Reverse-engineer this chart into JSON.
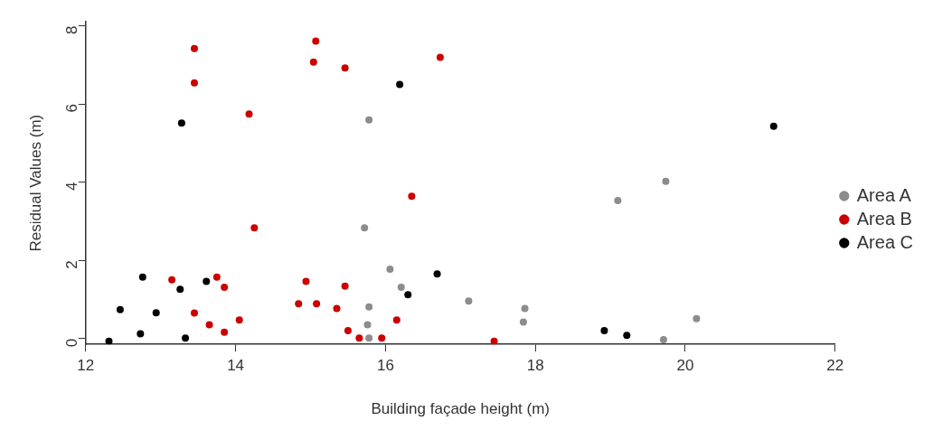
{
  "chart_data": {
    "type": "scatter",
    "xlabel": "Building façade height (m)",
    "ylabel": "Residual Values (m)",
    "xlim": [
      12,
      22
    ],
    "ylim": [
      -0.15,
      8.1
    ],
    "xticks": [
      12,
      14,
      16,
      18,
      20,
      22
    ],
    "yticks": [
      0,
      2,
      4,
      6,
      8
    ],
    "grid": false,
    "legend": "right",
    "marker": "circle",
    "series": [
      {
        "name": "Area A",
        "color": "#8c8c8c",
        "x": [
          15.78,
          15.72,
          16.06,
          16.21,
          15.78,
          15.76,
          15.78,
          17.11,
          17.86,
          17.84,
          19.1,
          19.74,
          19.71,
          20.15
        ],
        "values": [
          5.59,
          2.83,
          1.77,
          1.31,
          0.81,
          0.35,
          0.01,
          0.96,
          0.77,
          0.42,
          3.53,
          4.02,
          -0.03,
          0.51
        ]
      },
      {
        "name": "Area B",
        "color": "#cc0000",
        "x": [
          13.45,
          13.45,
          14.18,
          14.25,
          13.15,
          13.75,
          13.85,
          13.45,
          13.65,
          13.85,
          14.05,
          15.07,
          15.04,
          15.46,
          14.94,
          15.46,
          14.84,
          15.08,
          15.35,
          15.5,
          15.65,
          16.73,
          16.35,
          16.15,
          15.95,
          17.45
        ],
        "values": [
          7.42,
          6.54,
          5.74,
          2.83,
          1.5,
          1.57,
          1.31,
          0.65,
          0.35,
          0.16,
          0.47,
          7.61,
          7.07,
          6.92,
          1.46,
          1.34,
          0.89,
          0.89,
          0.77,
          0.2,
          0.01,
          7.19,
          3.64,
          0.47,
          0.01,
          -0.07
        ]
      },
      {
        "name": "Area C",
        "color": "#000000",
        "x": [
          12.31,
          12.46,
          12.76,
          12.73,
          12.94,
          13.26,
          13.28,
          13.33,
          13.61,
          16.19,
          16.69,
          16.3,
          18.92,
          19.22,
          21.18
        ],
        "values": [
          -0.07,
          0.74,
          1.57,
          0.12,
          0.66,
          1.26,
          5.51,
          0.01,
          1.46,
          6.5,
          1.65,
          1.12,
          0.2,
          0.08,
          5.43
        ]
      }
    ]
  }
}
